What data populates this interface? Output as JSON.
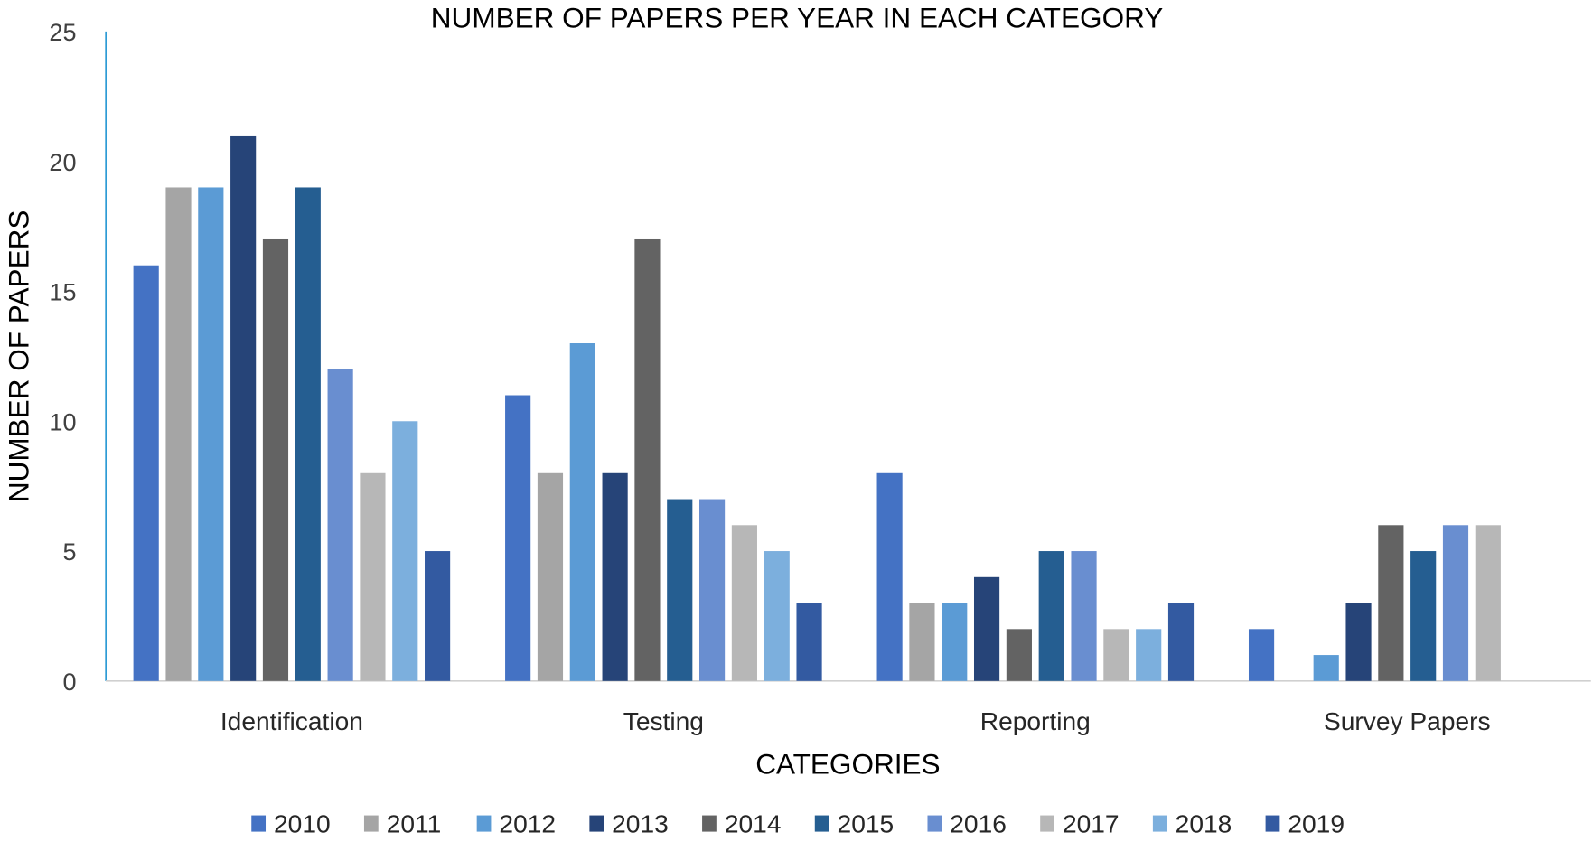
{
  "chart_data": {
    "type": "bar",
    "title": "NUMBER OF PAPERS PER YEAR IN EACH CATEGORY",
    "xlabel": "CATEGORIES",
    "ylabel": "NUMBER OF PAPERS",
    "ylim": [
      0,
      25
    ],
    "yticks": [
      0,
      5,
      10,
      15,
      20,
      25
    ],
    "grid": false,
    "legend_placement": "bottom",
    "categories": [
      "Identification",
      "Testing",
      "Reporting",
      "Survey Papers"
    ],
    "series": [
      {
        "name": "2010",
        "color": "#4472C4",
        "values": [
          16,
          11,
          8,
          2
        ]
      },
      {
        "name": "2011",
        "color": "#A5A5A5",
        "values": [
          19,
          8,
          3,
          0
        ]
      },
      {
        "name": "2012",
        "color": "#5B9BD5",
        "values": [
          19,
          13,
          3,
          1
        ]
      },
      {
        "name": "2013",
        "color": "#264478",
        "values": [
          21,
          8,
          4,
          3
        ]
      },
      {
        "name": "2014",
        "color": "#636363",
        "values": [
          17,
          17,
          2,
          6
        ]
      },
      {
        "name": "2015",
        "color": "#255E91",
        "values": [
          19,
          7,
          5,
          5
        ]
      },
      {
        "name": "2016",
        "color": "#698ED0",
        "values": [
          12,
          7,
          5,
          6
        ]
      },
      {
        "name": "2017",
        "color": "#B7B7B7",
        "values": [
          8,
          6,
          2,
          6
        ]
      },
      {
        "name": "2018",
        "color": "#7CAFDD",
        "values": [
          10,
          5,
          2,
          0
        ]
      },
      {
        "name": "2019",
        "color": "#335AA1",
        "values": [
          5,
          3,
          3,
          0
        ]
      }
    ]
  }
}
